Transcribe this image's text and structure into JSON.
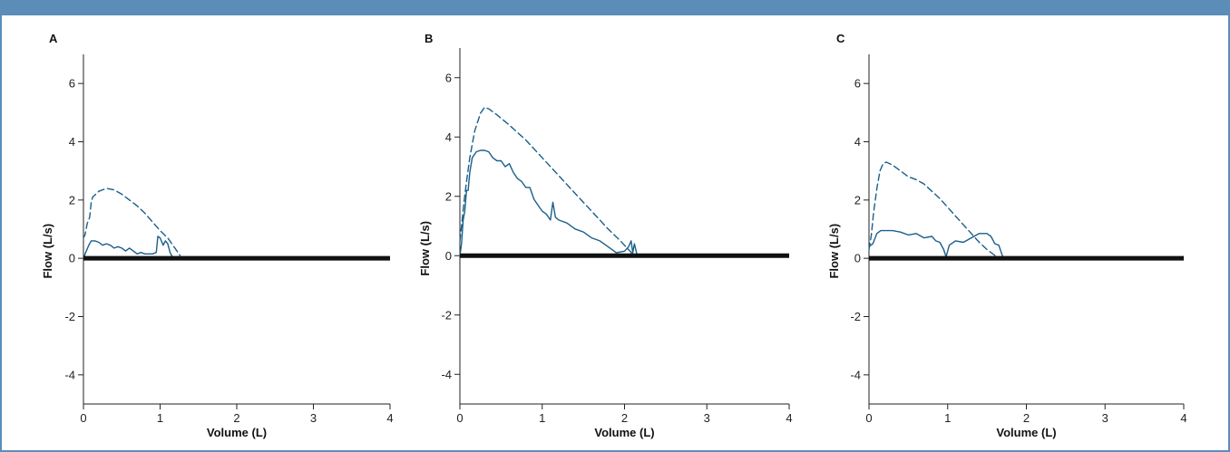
{
  "figure": {
    "frame_color": "#5b8db8",
    "series_color": "#1a5f8a",
    "baseline_color": "#111111"
  },
  "chart_data": [
    {
      "type": "line",
      "panel_label": "A",
      "xlabel": "Volume (L)",
      "ylabel": "Flow (L/s)",
      "xlim": [
        0,
        4
      ],
      "ylim": [
        -5,
        7
      ],
      "xticks": [
        0,
        1,
        2,
        3,
        4
      ],
      "yticks": [
        -4,
        -2,
        0,
        2,
        4,
        6
      ],
      "grid": false,
      "series": [
        {
          "style": "dashed",
          "x": [
            0.0,
            0.02,
            0.05,
            0.08,
            0.1,
            0.12,
            0.2,
            0.3,
            0.4,
            0.5,
            0.6,
            0.7,
            0.8,
            0.9,
            1.0,
            1.1,
            1.18,
            1.22,
            1.26
          ],
          "y": [
            0.7,
            0.8,
            1.2,
            1.4,
            1.9,
            2.1,
            2.3,
            2.4,
            2.35,
            2.2,
            2.0,
            1.8,
            1.55,
            1.25,
            0.95,
            0.7,
            0.4,
            0.25,
            0.1
          ]
        },
        {
          "style": "solid",
          "x": [
            0.0,
            0.03,
            0.07,
            0.1,
            0.15,
            0.2,
            0.25,
            0.3,
            0.35,
            0.4,
            0.45,
            0.5,
            0.55,
            0.6,
            0.65,
            0.7,
            0.75,
            0.8,
            0.85,
            0.9,
            0.95,
            0.97,
            1.0,
            1.04,
            1.07,
            1.1,
            1.13,
            1.15,
            1.17
          ],
          "y": [
            0.0,
            0.2,
            0.45,
            0.6,
            0.6,
            0.55,
            0.45,
            0.5,
            0.45,
            0.35,
            0.4,
            0.35,
            0.25,
            0.35,
            0.25,
            0.15,
            0.2,
            0.15,
            0.15,
            0.15,
            0.2,
            0.75,
            0.7,
            0.45,
            0.6,
            0.5,
            0.2,
            0.1,
            0.0
          ]
        },
        {
          "style": "baseline",
          "x": [
            0,
            4
          ],
          "y": [
            0,
            0
          ]
        }
      ]
    },
    {
      "type": "line",
      "panel_label": "B",
      "xlabel": "Volume (L)",
      "ylabel": "Flow (L/s)",
      "xlim": [
        0,
        4
      ],
      "ylim": [
        -5,
        7
      ],
      "xticks": [
        0,
        1,
        2,
        3,
        4
      ],
      "yticks": [
        -4,
        -2,
        0,
        2,
        4,
        6
      ],
      "grid": false,
      "series": [
        {
          "style": "dashed",
          "x": [
            0.0,
            0.02,
            0.05,
            0.08,
            0.12,
            0.18,
            0.25,
            0.3,
            0.35,
            0.45,
            0.6,
            0.8,
            1.0,
            1.2,
            1.4,
            1.6,
            1.8,
            1.95,
            2.05,
            2.1
          ],
          "y": [
            0.5,
            1.0,
            1.8,
            2.5,
            3.3,
            4.2,
            4.8,
            5.0,
            4.95,
            4.75,
            4.4,
            3.9,
            3.3,
            2.7,
            2.1,
            1.5,
            0.9,
            0.5,
            0.2,
            0.05
          ]
        },
        {
          "style": "solid",
          "x": [
            0.0,
            0.02,
            0.04,
            0.06,
            0.08,
            0.1,
            0.12,
            0.15,
            0.2,
            0.25,
            0.3,
            0.35,
            0.4,
            0.45,
            0.5,
            0.55,
            0.6,
            0.65,
            0.7,
            0.75,
            0.8,
            0.85,
            0.9,
            0.95,
            1.0,
            1.05,
            1.1,
            1.13,
            1.16,
            1.2,
            1.3,
            1.4,
            1.5,
            1.6,
            1.7,
            1.8,
            1.85,
            1.9,
            2.0,
            2.05,
            2.08,
            2.1,
            2.12,
            2.15
          ],
          "y": [
            0.0,
            0.4,
            1.2,
            1.5,
            2.2,
            2.2,
            2.8,
            3.3,
            3.5,
            3.55,
            3.55,
            3.5,
            3.3,
            3.2,
            3.2,
            3.0,
            3.1,
            2.8,
            2.6,
            2.5,
            2.3,
            2.3,
            1.9,
            1.7,
            1.5,
            1.4,
            1.2,
            1.8,
            1.3,
            1.2,
            1.1,
            0.9,
            0.8,
            0.6,
            0.5,
            0.3,
            0.2,
            0.1,
            0.15,
            0.3,
            0.5,
            0.1,
            0.4,
            0.05
          ]
        },
        {
          "style": "baseline",
          "x": [
            0,
            4
          ],
          "y": [
            0,
            0
          ]
        }
      ]
    },
    {
      "type": "line",
      "panel_label": "C",
      "xlabel": "Volume (L)",
      "ylabel": "Flow (L/s)",
      "xlim": [
        0,
        4
      ],
      "ylim": [
        -5,
        7
      ],
      "xticks": [
        0,
        1,
        2,
        3,
        4
      ],
      "yticks": [
        -4,
        -2,
        0,
        2,
        4,
        6
      ],
      "grid": false,
      "series": [
        {
          "style": "dashed",
          "x": [
            0.0,
            0.03,
            0.06,
            0.1,
            0.14,
            0.18,
            0.22,
            0.3,
            0.4,
            0.5,
            0.6,
            0.7,
            0.8,
            0.9,
            1.0,
            1.1,
            1.2,
            1.3,
            1.4,
            1.5,
            1.6,
            1.65
          ],
          "y": [
            0.3,
            0.8,
            1.6,
            2.4,
            3.0,
            3.25,
            3.3,
            3.2,
            3.0,
            2.8,
            2.7,
            2.55,
            2.3,
            2.05,
            1.75,
            1.45,
            1.15,
            0.85,
            0.55,
            0.3,
            0.1,
            0.0
          ]
        },
        {
          "style": "solid",
          "x": [
            0.0,
            0.05,
            0.1,
            0.15,
            0.2,
            0.3,
            0.4,
            0.5,
            0.6,
            0.7,
            0.8,
            0.85,
            0.9,
            0.95,
            0.98,
            1.02,
            1.1,
            1.2,
            1.3,
            1.4,
            1.5,
            1.55,
            1.6,
            1.65,
            1.7
          ],
          "y": [
            0.4,
            0.5,
            0.85,
            0.95,
            0.95,
            0.95,
            0.9,
            0.8,
            0.85,
            0.7,
            0.75,
            0.6,
            0.55,
            0.3,
            0.05,
            0.45,
            0.6,
            0.55,
            0.7,
            0.85,
            0.85,
            0.75,
            0.5,
            0.45,
            0.05
          ]
        },
        {
          "style": "baseline",
          "x": [
            0,
            4
          ],
          "y": [
            0,
            0
          ]
        }
      ]
    }
  ]
}
